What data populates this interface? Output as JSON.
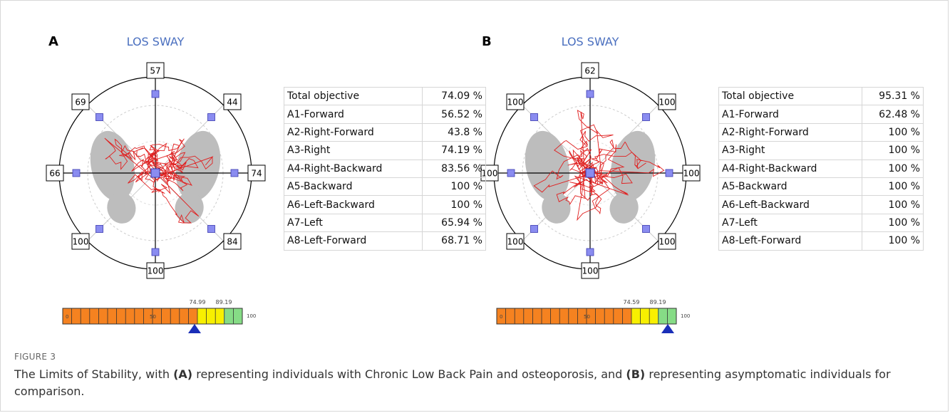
{
  "panels": [
    {
      "letter": "A",
      "title": "LOS SWAY",
      "direction_scores": [
        "57",
        "44",
        "74",
        "84",
        "100",
        "100",
        "66",
        "69"
      ],
      "table": {
        "rows": [
          [
            "Total objective",
            "74.09 %"
          ],
          [
            "A1-Forward",
            "56.52 %"
          ],
          [
            "A2-Right-Forward",
            "43.8 %"
          ],
          [
            "A3-Right",
            "74.19 %"
          ],
          [
            "A4-Right-Backward",
            "83.56 %"
          ],
          [
            "A5-Backward",
            "100 %"
          ],
          [
            "A6-Left-Backward",
            "100 %"
          ],
          [
            "A7-Left",
            "65.94 %"
          ],
          [
            "A8-Left-Forward",
            "68.71 %"
          ]
        ]
      },
      "scale": {
        "labels": [
          "0",
          "50",
          "74.99",
          "89.19",
          "100"
        ]
      }
    },
    {
      "letter": "B",
      "title": "LOS SWAY",
      "direction_scores": [
        "62",
        "100",
        "100",
        "100",
        "100",
        "100",
        "100",
        "100"
      ],
      "table": {
        "rows": [
          [
            "Total objective",
            "95.31 %"
          ],
          [
            "A1-Forward",
            "62.48 %"
          ],
          [
            "A2-Right-Forward",
            "100 %"
          ],
          [
            "A3-Right",
            "100 %"
          ],
          [
            "A4-Right-Backward",
            "100 %"
          ],
          [
            "A5-Backward",
            "100 %"
          ],
          [
            "A6-Left-Backward",
            "100 %"
          ],
          [
            "A7-Left",
            "100 %"
          ],
          [
            "A8-Left-Forward",
            "100 %"
          ]
        ]
      },
      "scale": {
        "labels": [
          "0",
          "50",
          "74.59",
          "89.19",
          "100"
        ]
      }
    }
  ],
  "caption": {
    "label": "FIGURE 3",
    "parts": [
      "The Limits of Stability, with ",
      "(A)",
      " representing individuals with Chronic Low Back Pain and osteoporosis, and ",
      "(B)",
      " representing asymptomatic individuals for comparison."
    ]
  }
}
